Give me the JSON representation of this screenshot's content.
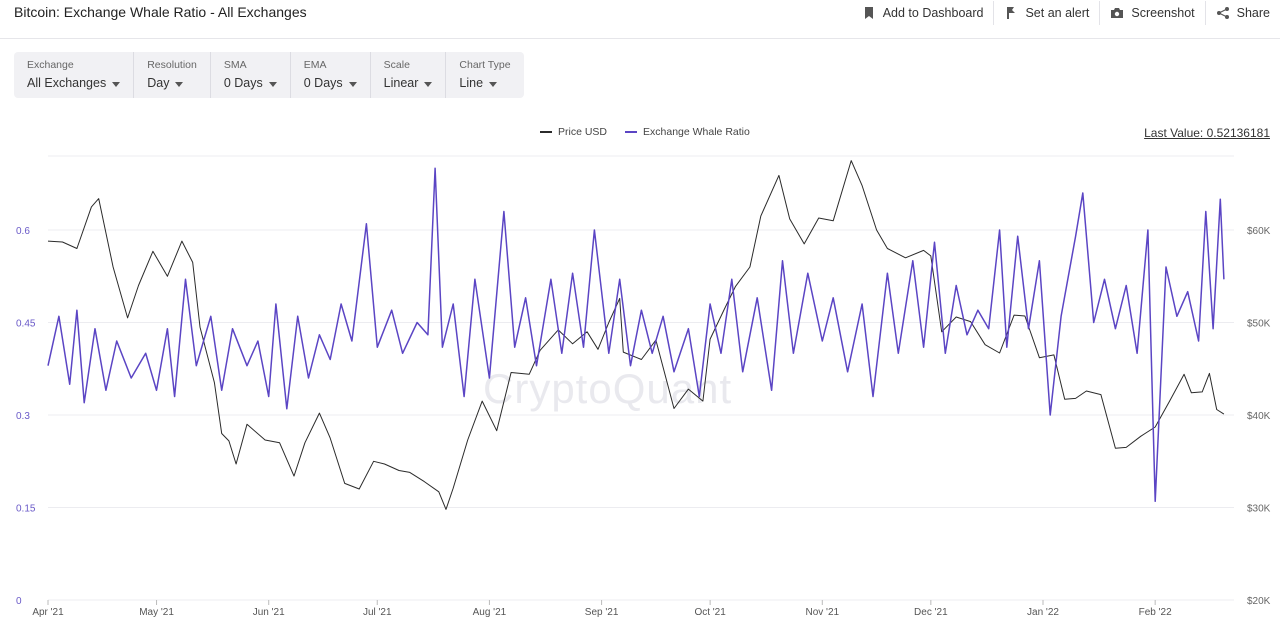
{
  "header": {
    "title": "Bitcoin: Exchange Whale Ratio - All Exchanges",
    "actions": {
      "dashboard": "Add to Dashboard",
      "alert": "Set an alert",
      "screenshot": "Screenshot",
      "share": "Share"
    }
  },
  "controls": [
    {
      "label": "Exchange",
      "value": "All Exchanges"
    },
    {
      "label": "Resolution",
      "value": "Day"
    },
    {
      "label": "SMA",
      "value": "0 Days"
    },
    {
      "label": "EMA",
      "value": "0 Days"
    },
    {
      "label": "Scale",
      "value": "Linear"
    },
    {
      "label": "Chart Type",
      "value": "Line"
    }
  ],
  "legend": {
    "price": "Price USD",
    "ratio": "Exchange Whale Ratio"
  },
  "last_value": "Last Value: 0.52136181",
  "watermark": "CryptoQuant",
  "colors": {
    "price": "#2b2b2b",
    "ratio": "#5b45c4",
    "left_axis": "#6a5ac8",
    "grid": "#ececf0"
  },
  "chart_data": {
    "type": "line",
    "x_range": [
      "2021-04-01",
      "2022-02-20"
    ],
    "x_ticks": [
      "Apr '21",
      "May '21",
      "Jun '21",
      "Jul '21",
      "Aug '21",
      "Sep '21",
      "Oct '21",
      "Nov '21",
      "Dec '21",
      "Jan '22",
      "Feb '22"
    ],
    "y_left": {
      "label": "",
      "range": [
        0,
        0.72
      ],
      "ticks": [
        "0",
        "0.15",
        "0.3",
        "0.45",
        "0.6"
      ],
      "tick_values": [
        0,
        0.15,
        0.3,
        0.45,
        0.6
      ]
    },
    "y_right": {
      "label": "",
      "range": [
        20000,
        68000
      ],
      "ticks": [
        "$20K",
        "$30K",
        "$40K",
        "$50K",
        "$60K"
      ],
      "tick_values": [
        20000,
        30000,
        40000,
        50000,
        60000
      ]
    },
    "series": [
      {
        "name": "Price USD",
        "axis": "right",
        "points": [
          [
            "2021-04-01",
            58800
          ],
          [
            "2021-04-05",
            58700
          ],
          [
            "2021-04-09",
            58000
          ],
          [
            "2021-04-13",
            62500
          ],
          [
            "2021-04-15",
            63400
          ],
          [
            "2021-04-19",
            56000
          ],
          [
            "2021-04-23",
            50500
          ],
          [
            "2021-04-26",
            54000
          ],
          [
            "2021-04-30",
            57700
          ],
          [
            "2021-05-04",
            55000
          ],
          [
            "2021-05-08",
            58800
          ],
          [
            "2021-05-11",
            56500
          ],
          [
            "2021-05-13",
            49500
          ],
          [
            "2021-05-17",
            43500
          ],
          [
            "2021-05-19",
            38000
          ],
          [
            "2021-05-21",
            37200
          ],
          [
            "2021-05-23",
            34700
          ],
          [
            "2021-05-26",
            39000
          ],
          [
            "2021-05-31",
            37300
          ],
          [
            "2021-06-04",
            37000
          ],
          [
            "2021-06-08",
            33400
          ],
          [
            "2021-06-11",
            37000
          ],
          [
            "2021-06-15",
            40200
          ],
          [
            "2021-06-18",
            37500
          ],
          [
            "2021-06-22",
            32600
          ],
          [
            "2021-06-26",
            32000
          ],
          [
            "2021-06-30",
            35000
          ],
          [
            "2021-07-03",
            34700
          ],
          [
            "2021-07-07",
            34000
          ],
          [
            "2021-07-10",
            33800
          ],
          [
            "2021-07-14",
            32800
          ],
          [
            "2021-07-18",
            31700
          ],
          [
            "2021-07-20",
            29800
          ],
          [
            "2021-07-22",
            32100
          ],
          [
            "2021-07-26",
            37300
          ],
          [
            "2021-07-30",
            41500
          ],
          [
            "2021-08-03",
            38300
          ],
          [
            "2021-08-07",
            44600
          ],
          [
            "2021-08-12",
            44400
          ],
          [
            "2021-08-15",
            47000
          ],
          [
            "2021-08-20",
            49200
          ],
          [
            "2021-08-24",
            47700
          ],
          [
            "2021-08-28",
            49000
          ],
          [
            "2021-08-31",
            47100
          ],
          [
            "2021-09-03",
            50000
          ],
          [
            "2021-09-06",
            52600
          ],
          [
            "2021-09-07",
            46800
          ],
          [
            "2021-09-12",
            46000
          ],
          [
            "2021-09-16",
            48100
          ],
          [
            "2021-09-21",
            40700
          ],
          [
            "2021-09-25",
            42800
          ],
          [
            "2021-09-29",
            41500
          ],
          [
            "2021-10-01",
            48200
          ],
          [
            "2021-10-05",
            51500
          ],
          [
            "2021-10-08",
            53900
          ],
          [
            "2021-10-12",
            56000
          ],
          [
            "2021-10-15",
            61500
          ],
          [
            "2021-10-20",
            65900
          ],
          [
            "2021-10-23",
            61200
          ],
          [
            "2021-10-27",
            58500
          ],
          [
            "2021-10-31",
            61300
          ],
          [
            "2021-11-04",
            61000
          ],
          [
            "2021-11-09",
            67500
          ],
          [
            "2021-11-12",
            64800
          ],
          [
            "2021-11-16",
            60000
          ],
          [
            "2021-11-19",
            58000
          ],
          [
            "2021-11-24",
            57000
          ],
          [
            "2021-11-29",
            57800
          ],
          [
            "2021-12-01",
            57200
          ],
          [
            "2021-12-04",
            49000
          ],
          [
            "2021-12-08",
            50600
          ],
          [
            "2021-12-12",
            50100
          ],
          [
            "2021-12-16",
            47600
          ],
          [
            "2021-12-20",
            46700
          ],
          [
            "2021-12-24",
            50800
          ],
          [
            "2021-12-27",
            50700
          ],
          [
            "2021-12-31",
            46200
          ],
          [
            "2022-01-04",
            46500
          ],
          [
            "2022-01-07",
            41700
          ],
          [
            "2022-01-10",
            41800
          ],
          [
            "2022-01-13",
            42600
          ],
          [
            "2022-01-17",
            42200
          ],
          [
            "2022-01-21",
            36400
          ],
          [
            "2022-01-24",
            36500
          ],
          [
            "2022-01-28",
            37700
          ],
          [
            "2022-02-01",
            38700
          ],
          [
            "2022-02-05",
            41500
          ],
          [
            "2022-02-09",
            44400
          ],
          [
            "2022-02-11",
            42400
          ],
          [
            "2022-02-14",
            42500
          ],
          [
            "2022-02-16",
            44500
          ],
          [
            "2022-02-18",
            40600
          ],
          [
            "2022-02-20",
            40100
          ]
        ]
      },
      {
        "name": "Exchange Whale Ratio",
        "axis": "left",
        "points": [
          [
            "2021-04-01",
            0.38
          ],
          [
            "2021-04-04",
            0.46
          ],
          [
            "2021-04-07",
            0.35
          ],
          [
            "2021-04-09",
            0.47
          ],
          [
            "2021-04-11",
            0.32
          ],
          [
            "2021-04-14",
            0.44
          ],
          [
            "2021-04-17",
            0.34
          ],
          [
            "2021-04-20",
            0.42
          ],
          [
            "2021-04-24",
            0.36
          ],
          [
            "2021-04-28",
            0.4
          ],
          [
            "2021-05-01",
            0.34
          ],
          [
            "2021-05-04",
            0.44
          ],
          [
            "2021-05-06",
            0.33
          ],
          [
            "2021-05-09",
            0.52
          ],
          [
            "2021-05-12",
            0.38
          ],
          [
            "2021-05-16",
            0.46
          ],
          [
            "2021-05-19",
            0.34
          ],
          [
            "2021-05-22",
            0.44
          ],
          [
            "2021-05-26",
            0.38
          ],
          [
            "2021-05-29",
            0.42
          ],
          [
            "2021-06-01",
            0.33
          ],
          [
            "2021-06-03",
            0.48
          ],
          [
            "2021-06-06",
            0.31
          ],
          [
            "2021-06-09",
            0.46
          ],
          [
            "2021-06-12",
            0.36
          ],
          [
            "2021-06-15",
            0.43
          ],
          [
            "2021-06-18",
            0.39
          ],
          [
            "2021-06-21",
            0.48
          ],
          [
            "2021-06-24",
            0.42
          ],
          [
            "2021-06-28",
            0.61
          ],
          [
            "2021-07-01",
            0.41
          ],
          [
            "2021-07-05",
            0.47
          ],
          [
            "2021-07-08",
            0.4
          ],
          [
            "2021-07-12",
            0.45
          ],
          [
            "2021-07-15",
            0.43
          ],
          [
            "2021-07-17",
            0.7
          ],
          [
            "2021-07-19",
            0.41
          ],
          [
            "2021-07-22",
            0.48
          ],
          [
            "2021-07-25",
            0.33
          ],
          [
            "2021-07-28",
            0.52
          ],
          [
            "2021-08-01",
            0.36
          ],
          [
            "2021-08-05",
            0.63
          ],
          [
            "2021-08-08",
            0.41
          ],
          [
            "2021-08-11",
            0.49
          ],
          [
            "2021-08-14",
            0.38
          ],
          [
            "2021-08-18",
            0.52
          ],
          [
            "2021-08-21",
            0.4
          ],
          [
            "2021-08-24",
            0.53
          ],
          [
            "2021-08-27",
            0.41
          ],
          [
            "2021-08-30",
            0.6
          ],
          [
            "2021-09-03",
            0.4
          ],
          [
            "2021-09-06",
            0.52
          ],
          [
            "2021-09-09",
            0.38
          ],
          [
            "2021-09-12",
            0.47
          ],
          [
            "2021-09-15",
            0.4
          ],
          [
            "2021-09-18",
            0.46
          ],
          [
            "2021-09-21",
            0.37
          ],
          [
            "2021-09-25",
            0.44
          ],
          [
            "2021-09-28",
            0.33
          ],
          [
            "2021-10-01",
            0.48
          ],
          [
            "2021-10-04",
            0.4
          ],
          [
            "2021-10-07",
            0.52
          ],
          [
            "2021-10-10",
            0.37
          ],
          [
            "2021-10-14",
            0.49
          ],
          [
            "2021-10-18",
            0.34
          ],
          [
            "2021-10-21",
            0.55
          ],
          [
            "2021-10-24",
            0.4
          ],
          [
            "2021-10-28",
            0.53
          ],
          [
            "2021-11-01",
            0.42
          ],
          [
            "2021-11-04",
            0.49
          ],
          [
            "2021-11-08",
            0.37
          ],
          [
            "2021-11-12",
            0.48
          ],
          [
            "2021-11-15",
            0.33
          ],
          [
            "2021-11-19",
            0.53
          ],
          [
            "2021-11-22",
            0.4
          ],
          [
            "2021-11-26",
            0.55
          ],
          [
            "2021-11-29",
            0.41
          ],
          [
            "2021-12-02",
            0.58
          ],
          [
            "2021-12-05",
            0.4
          ],
          [
            "2021-12-08",
            0.51
          ],
          [
            "2021-12-11",
            0.43
          ],
          [
            "2021-12-14",
            0.47
          ],
          [
            "2021-12-17",
            0.44
          ],
          [
            "2021-12-20",
            0.6
          ],
          [
            "2021-12-22",
            0.41
          ],
          [
            "2021-12-25",
            0.59
          ],
          [
            "2021-12-28",
            0.44
          ],
          [
            "2021-12-31",
            0.55
          ],
          [
            "2022-01-03",
            0.3
          ],
          [
            "2022-01-06",
            0.46
          ],
          [
            "2022-01-10",
            0.59
          ],
          [
            "2022-01-12",
            0.66
          ],
          [
            "2022-01-15",
            0.45
          ],
          [
            "2022-01-18",
            0.52
          ],
          [
            "2022-01-21",
            0.44
          ],
          [
            "2022-01-24",
            0.51
          ],
          [
            "2022-01-27",
            0.4
          ],
          [
            "2022-01-30",
            0.6
          ],
          [
            "2022-02-01",
            0.16
          ],
          [
            "2022-02-04",
            0.54
          ],
          [
            "2022-02-07",
            0.46
          ],
          [
            "2022-02-10",
            0.5
          ],
          [
            "2022-02-13",
            0.42
          ],
          [
            "2022-02-15",
            0.63
          ],
          [
            "2022-02-17",
            0.44
          ],
          [
            "2022-02-19",
            0.65
          ],
          [
            "2022-02-20",
            0.52
          ]
        ]
      }
    ]
  }
}
